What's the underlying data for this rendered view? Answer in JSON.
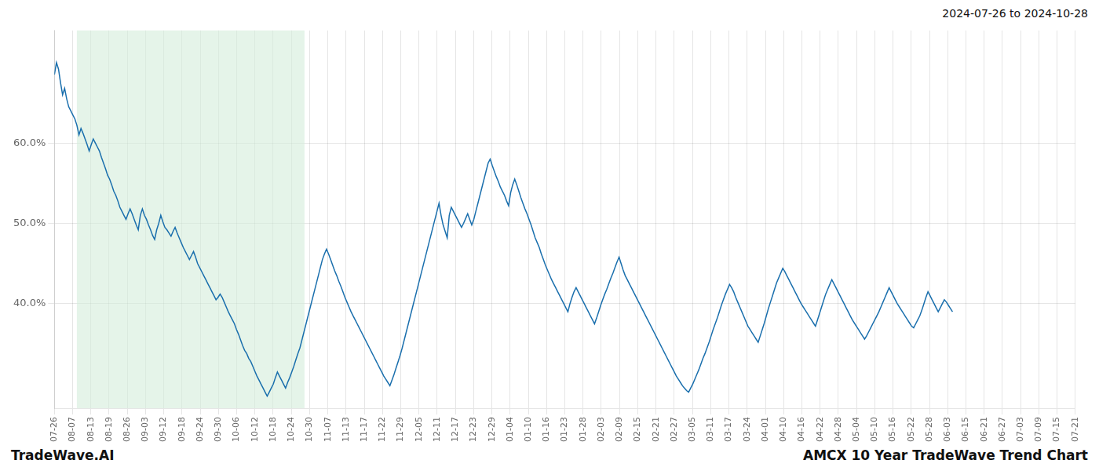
{
  "chart_data": {
    "type": "line",
    "title": "AMCX 10 Year TradeWave Trend Chart",
    "subtitle": "2024-07-26 to 2024-10-28",
    "annotations": [
      "TradeWave.AI"
    ],
    "color": "#1a6fad",
    "grid": true,
    "xlim": [
      0,
      499
    ],
    "xticks": [
      {
        "value": 0,
        "label": "07-26"
      },
      {
        "value": 8.910714,
        "label": "08-07"
      },
      {
        "value": 17.821429,
        "label": "08-13"
      },
      {
        "value": 26.732143,
        "label": "08-19"
      },
      {
        "value": 35.642857,
        "label": "08-26"
      },
      {
        "value": 44.553571,
        "label": "09-03"
      },
      {
        "value": 53.464286,
        "label": "09-12"
      },
      {
        "value": 62.375,
        "label": "09-18"
      },
      {
        "value": 71.285714,
        "label": "09-24"
      },
      {
        "value": 80.196429,
        "label": "09-30"
      },
      {
        "value": 89.107143,
        "label": "10-06"
      },
      {
        "value": 98.017857,
        "label": "10-12"
      },
      {
        "value": 106.928571,
        "label": "10-18"
      },
      {
        "value": 115.839286,
        "label": "10-24"
      },
      {
        "value": 124.75,
        "label": "10-30"
      },
      {
        "value": 133.660714,
        "label": "11-07"
      },
      {
        "value": 142.571429,
        "label": "11-13"
      },
      {
        "value": 151.482143,
        "label": "11-17"
      },
      {
        "value": 160.392857,
        "label": "11-22"
      },
      {
        "value": 169.303571,
        "label": "11-29"
      },
      {
        "value": 178.214286,
        "label": "12-05"
      },
      {
        "value": 187.125,
        "label": "12-11"
      },
      {
        "value": 196.035714,
        "label": "12-17"
      },
      {
        "value": 204.946429,
        "label": "12-23"
      },
      {
        "value": 213.857143,
        "label": "12-29"
      },
      {
        "value": 222.767857,
        "label": "01-04"
      },
      {
        "value": 231.678571,
        "label": "01-10"
      },
      {
        "value": 240.589286,
        "label": "01-16"
      },
      {
        "value": 249.5,
        "label": "01-23"
      },
      {
        "value": 258.410714,
        "label": "01-28"
      },
      {
        "value": 267.321429,
        "label": "02-03"
      },
      {
        "value": 276.232143,
        "label": "02-09"
      },
      {
        "value": 285.142857,
        "label": "02-15"
      },
      {
        "value": 294.053571,
        "label": "02-21"
      },
      {
        "value": 302.964286,
        "label": "02-27"
      },
      {
        "value": 311.875,
        "label": "03-05"
      },
      {
        "value": 320.785714,
        "label": "03-11"
      },
      {
        "value": 329.696429,
        "label": "03-17"
      },
      {
        "value": 338.607143,
        "label": "03-24"
      },
      {
        "value": 347.517857,
        "label": "04-01"
      },
      {
        "value": 356.428571,
        "label": "04-10"
      },
      {
        "value": 365.339286,
        "label": "04-16"
      },
      {
        "value": 374.25,
        "label": "04-22"
      },
      {
        "value": 383.160714,
        "label": "04-28"
      },
      {
        "value": 392.071429,
        "label": "05-04"
      },
      {
        "value": 400.982143,
        "label": "05-10"
      },
      {
        "value": 409.892857,
        "label": "05-16"
      },
      {
        "value": 418.803571,
        "label": "05-22"
      },
      {
        "value": 427.714286,
        "label": "05-28"
      },
      {
        "value": 436.625,
        "label": "06-03"
      },
      {
        "value": 445.535714,
        "label": "06-15"
      },
      {
        "value": 454.446429,
        "label": "06-21"
      },
      {
        "value": 463.357143,
        "label": "06-27"
      },
      {
        "value": 472.267857,
        "label": "07-03"
      },
      {
        "value": 481.178571,
        "label": "07-09"
      },
      {
        "value": 490.089286,
        "label": "07-15"
      },
      {
        "value": 499,
        "label": "07-21"
      }
    ],
    "ylim": [
      0.27,
      0.74
    ],
    "yticks": [
      {
        "value": 0.4,
        "label": "40.0%"
      },
      {
        "value": 0.5,
        "label": "50.0%"
      },
      {
        "value": 0.6,
        "label": "60.0%"
      }
    ],
    "shade": {
      "start": 10.978,
      "end": 122.255,
      "color": "#d4edda"
    },
    "values": [
      0.685,
      0.7,
      0.692,
      0.675,
      0.66,
      0.668,
      0.655,
      0.645,
      0.64,
      0.635,
      0.63,
      0.622,
      0.61,
      0.618,
      0.612,
      0.605,
      0.598,
      0.59,
      0.598,
      0.605,
      0.6,
      0.595,
      0.59,
      0.582,
      0.575,
      0.568,
      0.56,
      0.555,
      0.548,
      0.54,
      0.535,
      0.528,
      0.52,
      0.515,
      0.51,
      0.505,
      0.512,
      0.518,
      0.512,
      0.505,
      0.498,
      0.492,
      0.51,
      0.518,
      0.51,
      0.505,
      0.498,
      0.492,
      0.485,
      0.48,
      0.492,
      0.5,
      0.51,
      0.502,
      0.495,
      0.492,
      0.488,
      0.484,
      0.49,
      0.495,
      0.488,
      0.482,
      0.476,
      0.47,
      0.465,
      0.46,
      0.455,
      0.46,
      0.465,
      0.458,
      0.45,
      0.445,
      0.44,
      0.435,
      0.43,
      0.425,
      0.42,
      0.415,
      0.41,
      0.405,
      0.408,
      0.412,
      0.408,
      0.402,
      0.396,
      0.39,
      0.385,
      0.38,
      0.375,
      0.368,
      0.362,
      0.355,
      0.348,
      0.342,
      0.338,
      0.332,
      0.328,
      0.322,
      0.316,
      0.31,
      0.305,
      0.3,
      0.295,
      0.29,
      0.285,
      0.29,
      0.295,
      0.3,
      0.308,
      0.315,
      0.31,
      0.305,
      0.3,
      0.295,
      0.302,
      0.308,
      0.315,
      0.322,
      0.33,
      0.338,
      0.345,
      0.355,
      0.365,
      0.375,
      0.385,
      0.395,
      0.405,
      0.415,
      0.425,
      0.435,
      0.445,
      0.455,
      0.462,
      0.468,
      0.462,
      0.455,
      0.448,
      0.441,
      0.435,
      0.428,
      0.422,
      0.415,
      0.408,
      0.402,
      0.396,
      0.39,
      0.385,
      0.38,
      0.375,
      0.37,
      0.365,
      0.36,
      0.355,
      0.35,
      0.345,
      0.34,
      0.335,
      0.33,
      0.325,
      0.32,
      0.315,
      0.31,
      0.306,
      0.302,
      0.298,
      0.305,
      0.312,
      0.32,
      0.328,
      0.336,
      0.345,
      0.355,
      0.365,
      0.375,
      0.385,
      0.395,
      0.405,
      0.415,
      0.425,
      0.435,
      0.445,
      0.455,
      0.465,
      0.475,
      0.485,
      0.495,
      0.505,
      0.515,
      0.525,
      0.51,
      0.498,
      0.49,
      0.482,
      0.51,
      0.52,
      0.515,
      0.51,
      0.505,
      0.5,
      0.495,
      0.5,
      0.506,
      0.512,
      0.505,
      0.498,
      0.505,
      0.515,
      0.525,
      0.535,
      0.545,
      0.555,
      0.565,
      0.575,
      0.58,
      0.572,
      0.565,
      0.558,
      0.552,
      0.545,
      0.54,
      0.535,
      0.528,
      0.522,
      0.538,
      0.548,
      0.555,
      0.548,
      0.54,
      0.532,
      0.525,
      0.518,
      0.512,
      0.505,
      0.498,
      0.49,
      0.482,
      0.476,
      0.47,
      0.462,
      0.455,
      0.448,
      0.442,
      0.436,
      0.43,
      0.425,
      0.42,
      0.415,
      0.41,
      0.405,
      0.4,
      0.395,
      0.39,
      0.4,
      0.408,
      0.415,
      0.42,
      0.415,
      0.41,
      0.405,
      0.4,
      0.395,
      0.39,
      0.385,
      0.38,
      0.375,
      0.382,
      0.39,
      0.398,
      0.405,
      0.412,
      0.418,
      0.425,
      0.432,
      0.438,
      0.445,
      0.452,
      0.458,
      0.45,
      0.442,
      0.435,
      0.43,
      0.425,
      0.42,
      0.415,
      0.41,
      0.405,
      0.4,
      0.395,
      0.39,
      0.385,
      0.38,
      0.375,
      0.37,
      0.365,
      0.36,
      0.355,
      0.35,
      0.345,
      0.34,
      0.335,
      0.33,
      0.325,
      0.32,
      0.315,
      0.31,
      0.306,
      0.302,
      0.298,
      0.295,
      0.292,
      0.29,
      0.295,
      0.3,
      0.306,
      0.312,
      0.318,
      0.325,
      0.332,
      0.338,
      0.345,
      0.352,
      0.36,
      0.368,
      0.375,
      0.382,
      0.39,
      0.398,
      0.405,
      0.412,
      0.418,
      0.424,
      0.42,
      0.415,
      0.408,
      0.402,
      0.396,
      0.39,
      0.384,
      0.378,
      0.372,
      0.368,
      0.364,
      0.36,
      0.356,
      0.352,
      0.36,
      0.368,
      0.376,
      0.385,
      0.394,
      0.402,
      0.41,
      0.418,
      0.426,
      0.432,
      0.438,
      0.444,
      0.44,
      0.435,
      0.43,
      0.425,
      0.42,
      0.415,
      0.41,
      0.405,
      0.4,
      0.396,
      0.392,
      0.388,
      0.384,
      0.38,
      0.376,
      0.372,
      0.38,
      0.388,
      0.396,
      0.404,
      0.412,
      0.418,
      0.424,
      0.43,
      0.425,
      0.42,
      0.415,
      0.41,
      0.405,
      0.4,
      0.395,
      0.39,
      0.385,
      0.38,
      0.376,
      0.372,
      0.368,
      0.364,
      0.36,
      0.356,
      0.36,
      0.365,
      0.37,
      0.375,
      0.38,
      0.385,
      0.39,
      0.396,
      0.402,
      0.408,
      0.414,
      0.42,
      0.415,
      0.41,
      0.405,
      0.4,
      0.396,
      0.392,
      0.388,
      0.384,
      0.38,
      0.376,
      0.372,
      0.37,
      0.375,
      0.38,
      0.385,
      0.392,
      0.4,
      0.408,
      0.415,
      0.41,
      0.405,
      0.4,
      0.395,
      0.39,
      0.395,
      0.4,
      0.405,
      0.402,
      0.398,
      0.394,
      0.39
    ]
  }
}
